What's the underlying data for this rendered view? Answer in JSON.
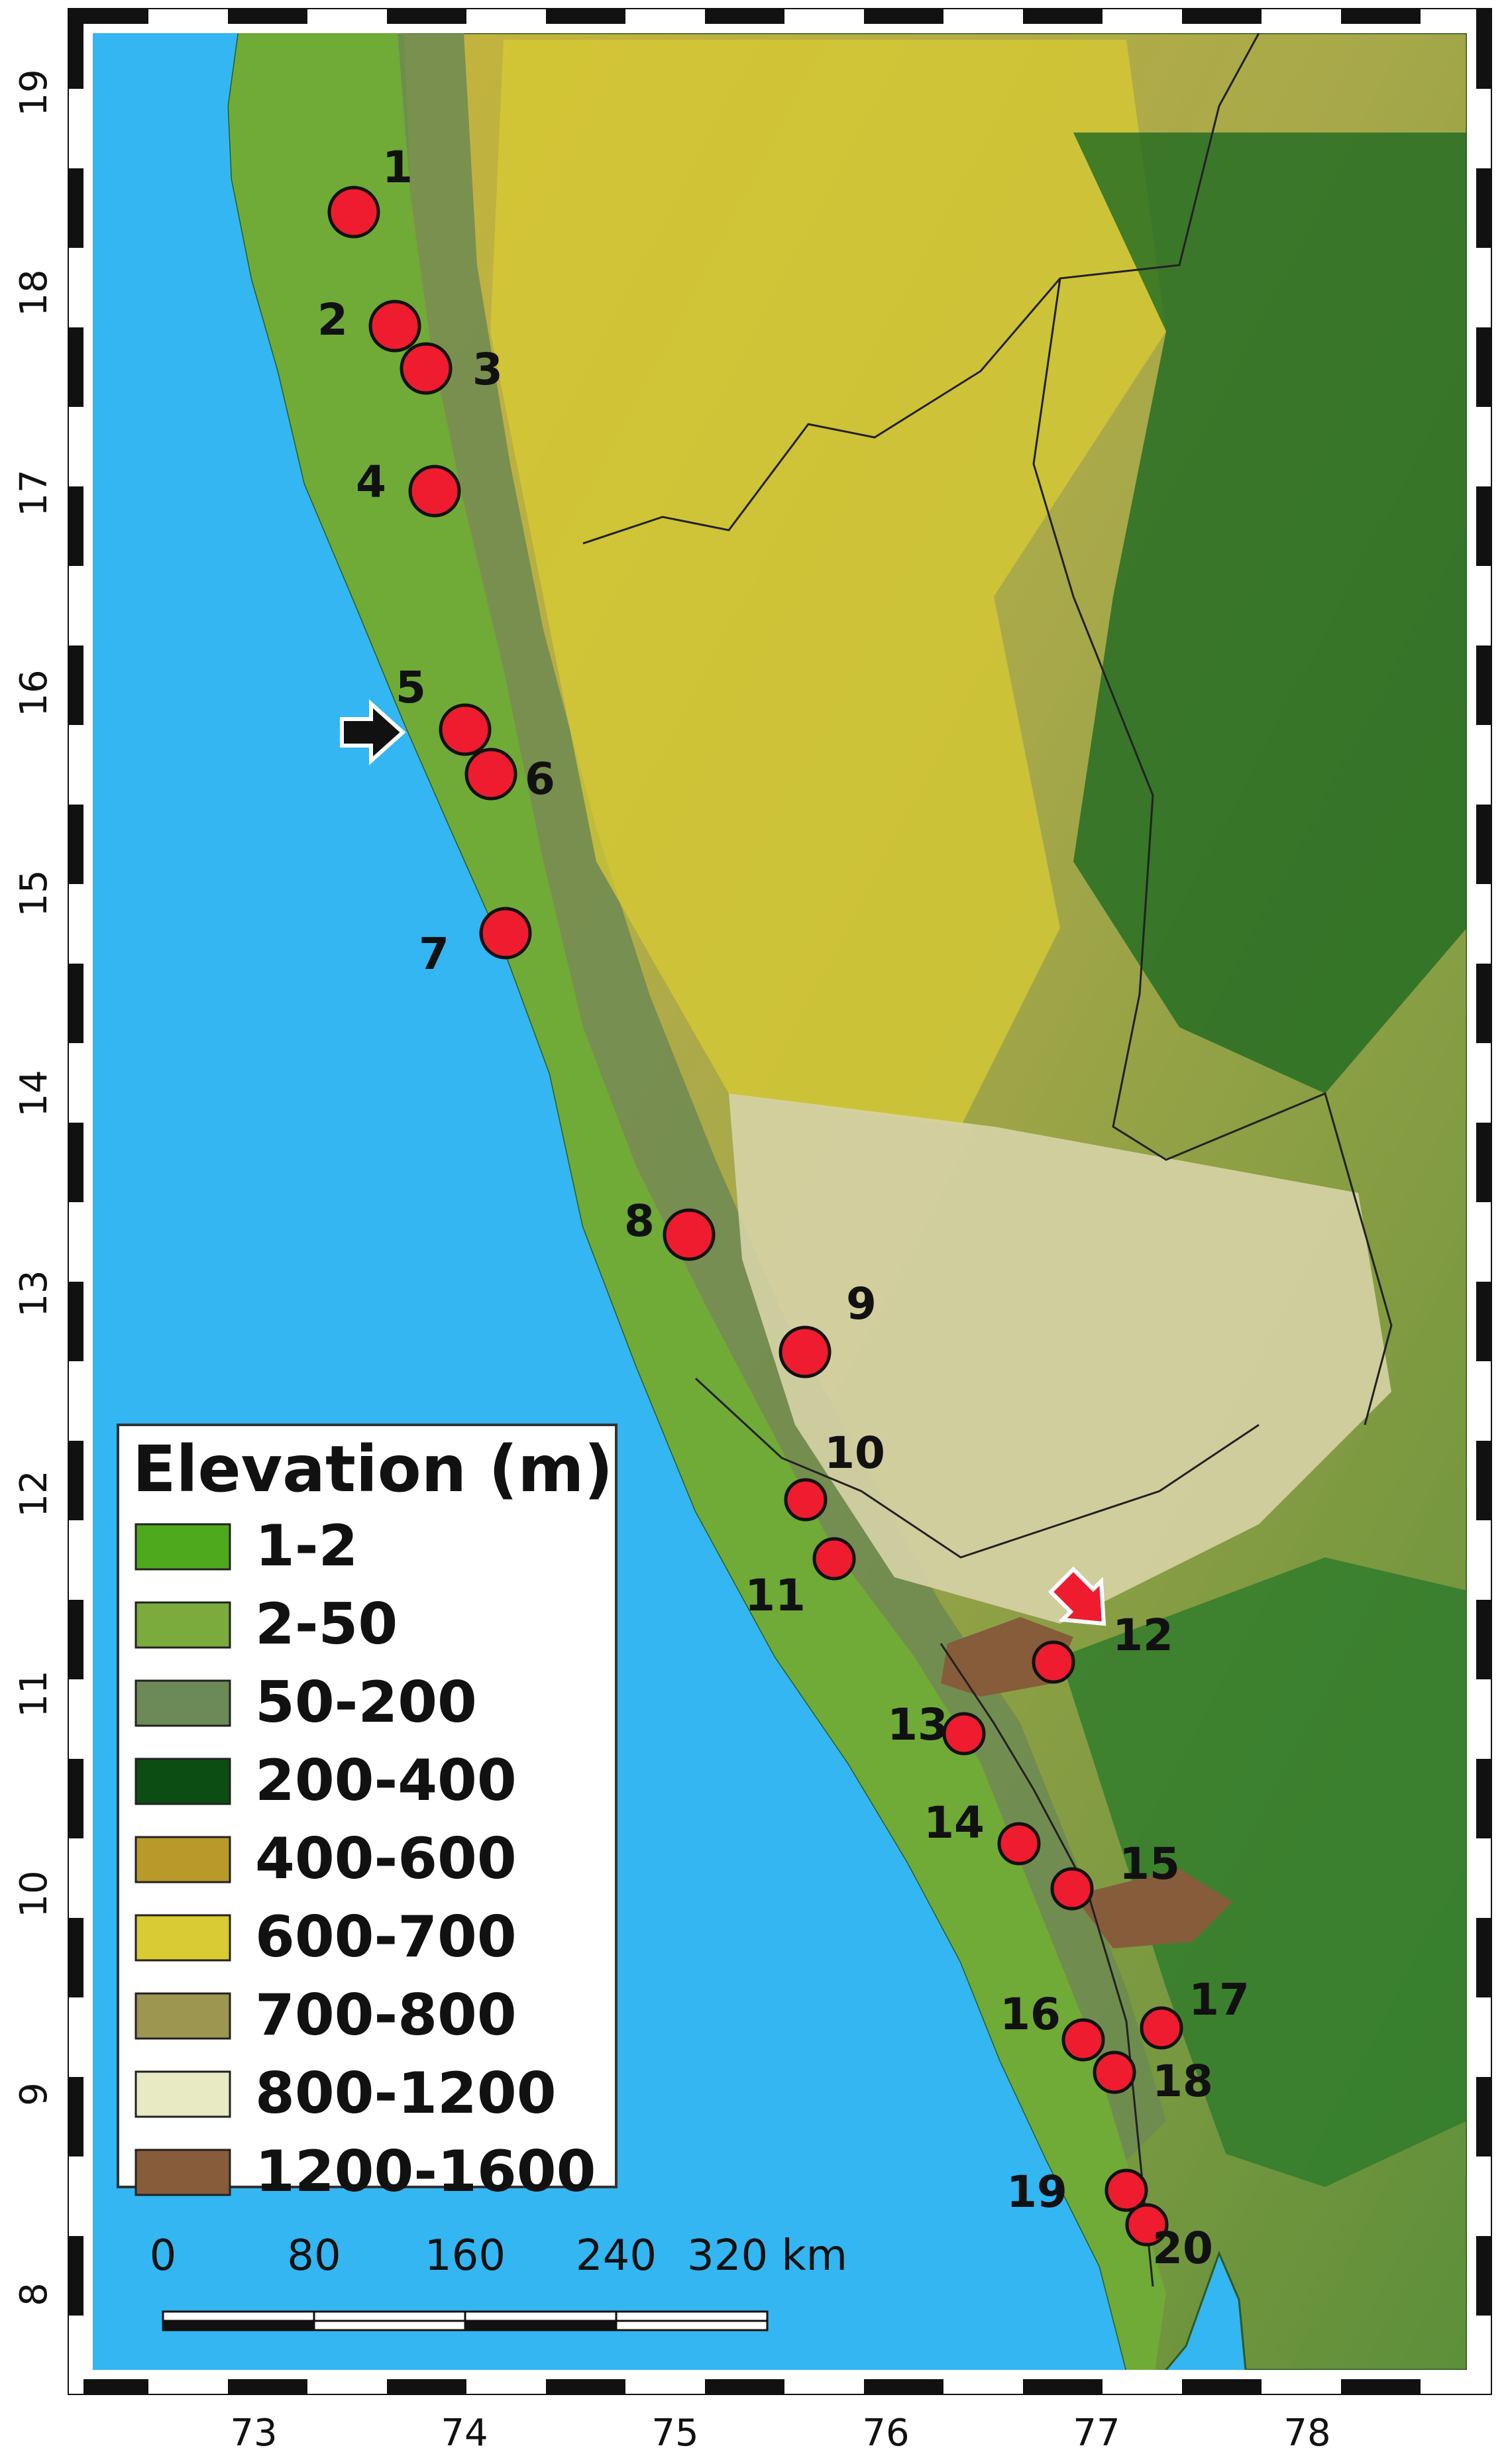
{
  "map": {
    "latitude_ticks": [
      "19",
      "18",
      "17",
      "16",
      "15",
      "14",
      "13",
      "12",
      "11",
      "10",
      "9",
      "8"
    ],
    "longitude_ticks": [
      "73",
      "74",
      "75",
      "76",
      "77",
      "78"
    ],
    "sea_color": "#33b6f2",
    "sites": [
      {
        "label": "1"
      },
      {
        "label": "2"
      },
      {
        "label": "3"
      },
      {
        "label": "4"
      },
      {
        "label": "5"
      },
      {
        "label": "6"
      },
      {
        "label": "7"
      },
      {
        "label": "8"
      },
      {
        "label": "9"
      },
      {
        "label": "10"
      },
      {
        "label": "11"
      },
      {
        "label": "12"
      },
      {
        "label": "13"
      },
      {
        "label": "14"
      },
      {
        "label": "15"
      },
      {
        "label": "16"
      },
      {
        "label": "17"
      },
      {
        "label": "18"
      },
      {
        "label": "19"
      },
      {
        "label": "20"
      }
    ],
    "site_marker_color": "#ee1c2e",
    "arrows": [
      {
        "name": "black-arrow-site-5",
        "color": "#111111"
      },
      {
        "name": "red-arrow-site-12",
        "color": "#ee1c2e"
      }
    ]
  },
  "legend": {
    "title": "Elevation (m)",
    "items": [
      {
        "label": "1-2",
        "color": "#4ea91c"
      },
      {
        "label": "2-50",
        "color": "#7bab3c"
      },
      {
        "label": "50-200",
        "color": "#6b8a57"
      },
      {
        "label": "200-400",
        "color": "#0b4d12"
      },
      {
        "label": "400-600",
        "color": "#b8992a"
      },
      {
        "label": "600-700",
        "color": "#d8cb33"
      },
      {
        "label": "700-800",
        "color": "#9c9650"
      },
      {
        "label": "800-1200",
        "color": "#e8eac4"
      },
      {
        "label": "1200-1600",
        "color": "#875c3a"
      }
    ]
  },
  "scale_bar": {
    "labels": [
      "0",
      "80",
      "160",
      "240",
      "320 km"
    ]
  }
}
